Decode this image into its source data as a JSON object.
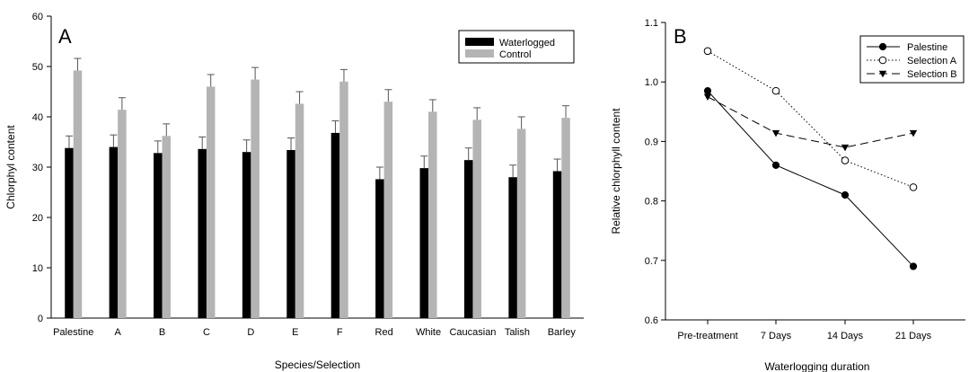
{
  "chart_data": [
    {
      "type": "bar",
      "panel_label": "A",
      "xlabel": "Species/Selection",
      "ylabel": "Chlorphyl content",
      "ylim": [
        0,
        60
      ],
      "yticks": [
        0,
        10,
        20,
        30,
        40,
        50,
        60
      ],
      "categories": [
        "Palestine",
        "A",
        "B",
        "C",
        "D",
        "E",
        "F",
        "Red",
        "White",
        "Caucasian",
        "Talish",
        "Barley"
      ],
      "series": [
        {
          "name": "Waterlogged",
          "color": "#000000",
          "values": [
            33.8,
            34.0,
            32.8,
            33.6,
            33.0,
            33.4,
            36.8,
            27.6,
            29.8,
            31.4,
            28.0,
            29.2
          ],
          "errors": [
            2.4,
            2.4,
            2.4,
            2.4,
            2.4,
            2.4,
            2.4,
            2.4,
            2.4,
            2.4,
            2.4,
            2.4
          ]
        },
        {
          "name": "Control",
          "color": "#b4b4b4",
          "values": [
            49.2,
            41.4,
            36.2,
            46.0,
            47.4,
            42.6,
            47.0,
            43.0,
            41.0,
            39.4,
            37.6,
            39.8
          ],
          "errors": [
            2.4,
            2.4,
            2.4,
            2.4,
            2.4,
            2.4,
            2.4,
            2.4,
            2.4,
            2.4,
            2.4,
            2.4
          ]
        }
      ],
      "legend": "top-right"
    },
    {
      "type": "line",
      "panel_label": "B",
      "xlabel": "Waterlogging duration",
      "ylabel": "Relative chlorphyll content",
      "ylim": [
        0.6,
        1.1
      ],
      "yticks": [
        "0.6",
        "0.7",
        "0.8",
        "0.9",
        "1.0",
        "1.1"
      ],
      "categories": [
        "Pre-treatment",
        "7 Days",
        "14 Days",
        "21 Days"
      ],
      "series": [
        {
          "name": "Palestine",
          "marker": "filled-circle",
          "line": "solid",
          "values": [
            0.985,
            0.86,
            0.81,
            0.69
          ]
        },
        {
          "name": "Selection A",
          "marker": "open-circle",
          "line": "dotted",
          "values": [
            1.052,
            0.985,
            0.868,
            0.823
          ]
        },
        {
          "name": "Selection B",
          "marker": "filled-triangle-down",
          "line": "dashed",
          "values": [
            0.975,
            0.914,
            0.89,
            0.914
          ]
        }
      ],
      "legend": "top-right"
    }
  ]
}
